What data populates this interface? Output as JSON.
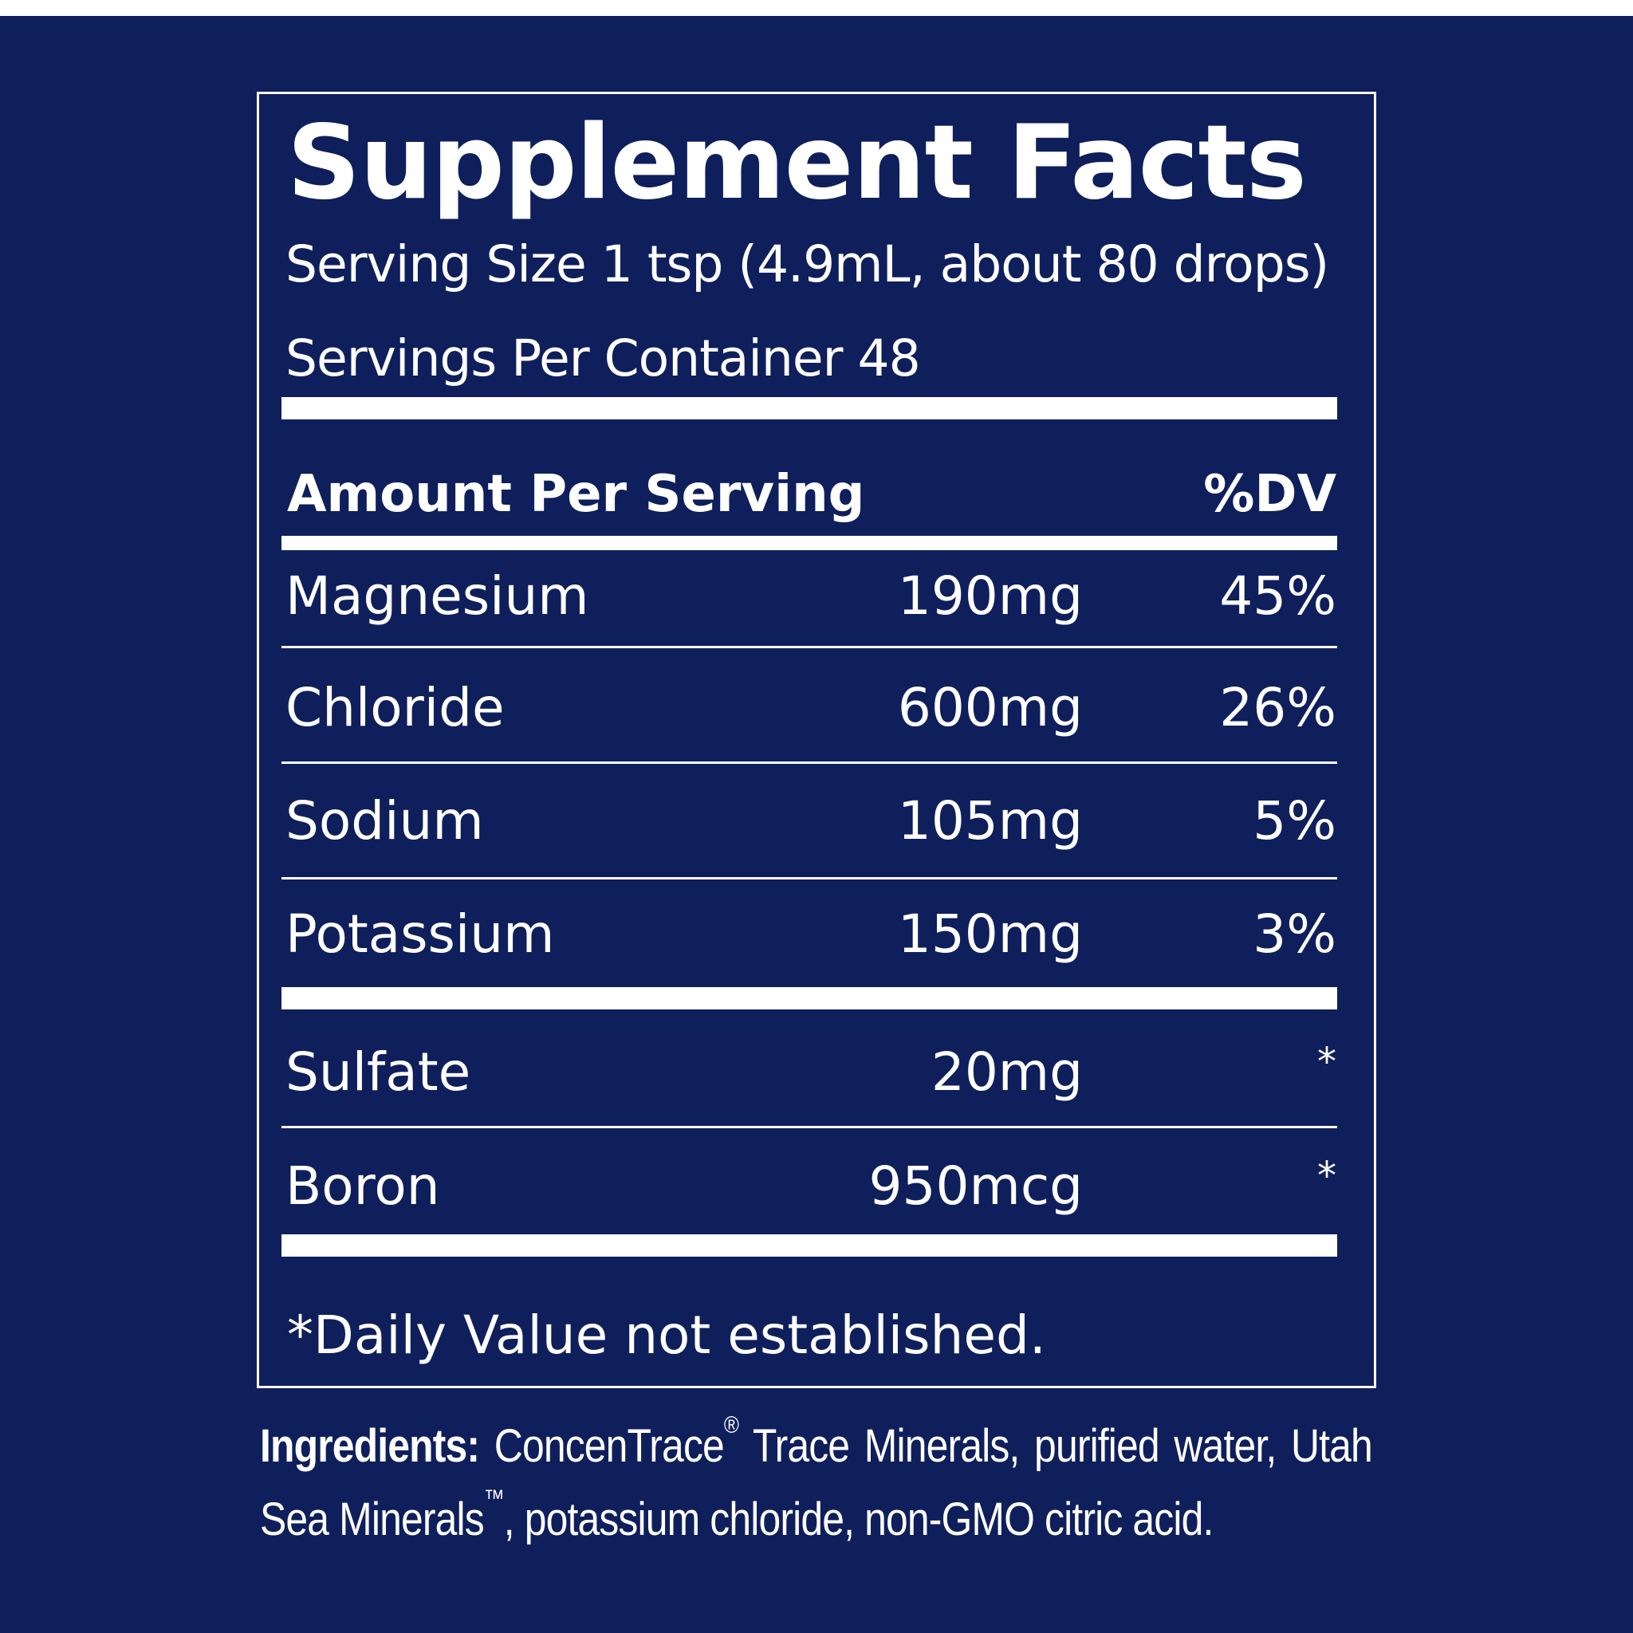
{
  "label": {
    "title": "Supplement Facts",
    "serving_size": "Serving Size 1 tsp (4.9mL, about 80 drops)",
    "servings_per_container": "Servings Per Container 48",
    "header_amount": "Amount Per Serving",
    "header_dv": "%DV",
    "nutrients": [
      {
        "name": "Magnesium",
        "amount": "190mg",
        "dv": "45%"
      },
      {
        "name": "Chloride",
        "amount": "600mg",
        "dv": "26%"
      },
      {
        "name": "Sodium",
        "amount": "105mg",
        "dv": "5%"
      },
      {
        "name": "Potassium",
        "amount": "150mg",
        "dv": "3%"
      },
      {
        "name": "Sulfate",
        "amount": "20mg",
        "dv": "*"
      },
      {
        "name": "Boron",
        "amount": "950mcg",
        "dv": "*"
      }
    ],
    "footnote": "*Daily Value not established."
  },
  "ingredients": {
    "label": "Ingredients:",
    "part1": "ConcenTrace",
    "registered_mark": "®",
    "part2": "Trace Minerals, purified water, Utah Sea Minerals",
    "trademark": "™",
    "part3": ", potassium chloride, non-GMO citric acid."
  },
  "colors": {
    "background": "#0f1f5c",
    "text": "#ffffff"
  }
}
